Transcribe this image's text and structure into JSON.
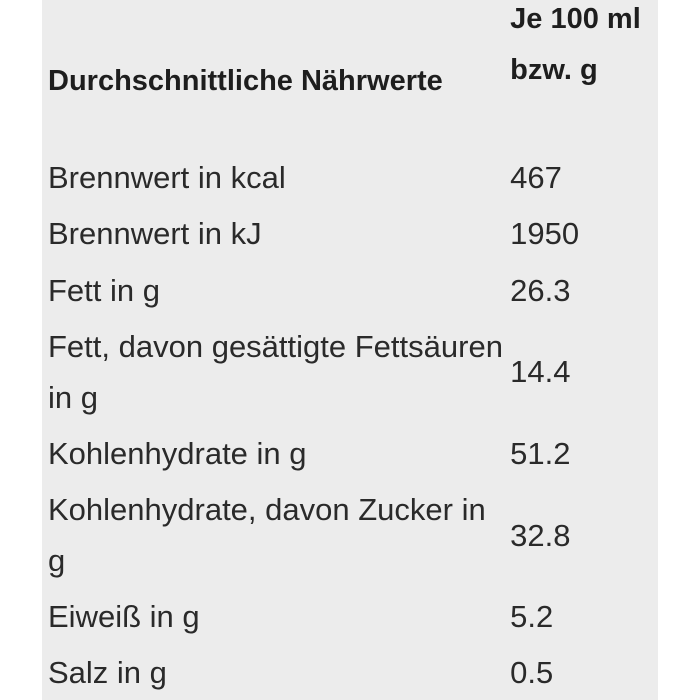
{
  "table": {
    "header": {
      "label": "Durchschnittliche Nährwerte",
      "value": "Je 100 ml bzw. g"
    },
    "rows": [
      {
        "label": "Brennwert in kcal",
        "value": "467"
      },
      {
        "label": "Brennwert in kJ",
        "value": "1950"
      },
      {
        "label": "Fett in g",
        "value": "26.3"
      },
      {
        "label": "Fett, davon gesättigte Fettsäuren in g",
        "value": "14.4"
      },
      {
        "label": "Kohlenhydrate in g",
        "value": "51.2"
      },
      {
        "label": "Kohlenhydrate, davon Zucker in g",
        "value": "32.8"
      },
      {
        "label": "Eiweiß in g",
        "value": "5.2"
      },
      {
        "label": "Salz in g",
        "value": "0.5"
      }
    ]
  },
  "colors": {
    "panel": "#ececec",
    "text": "#222222"
  }
}
